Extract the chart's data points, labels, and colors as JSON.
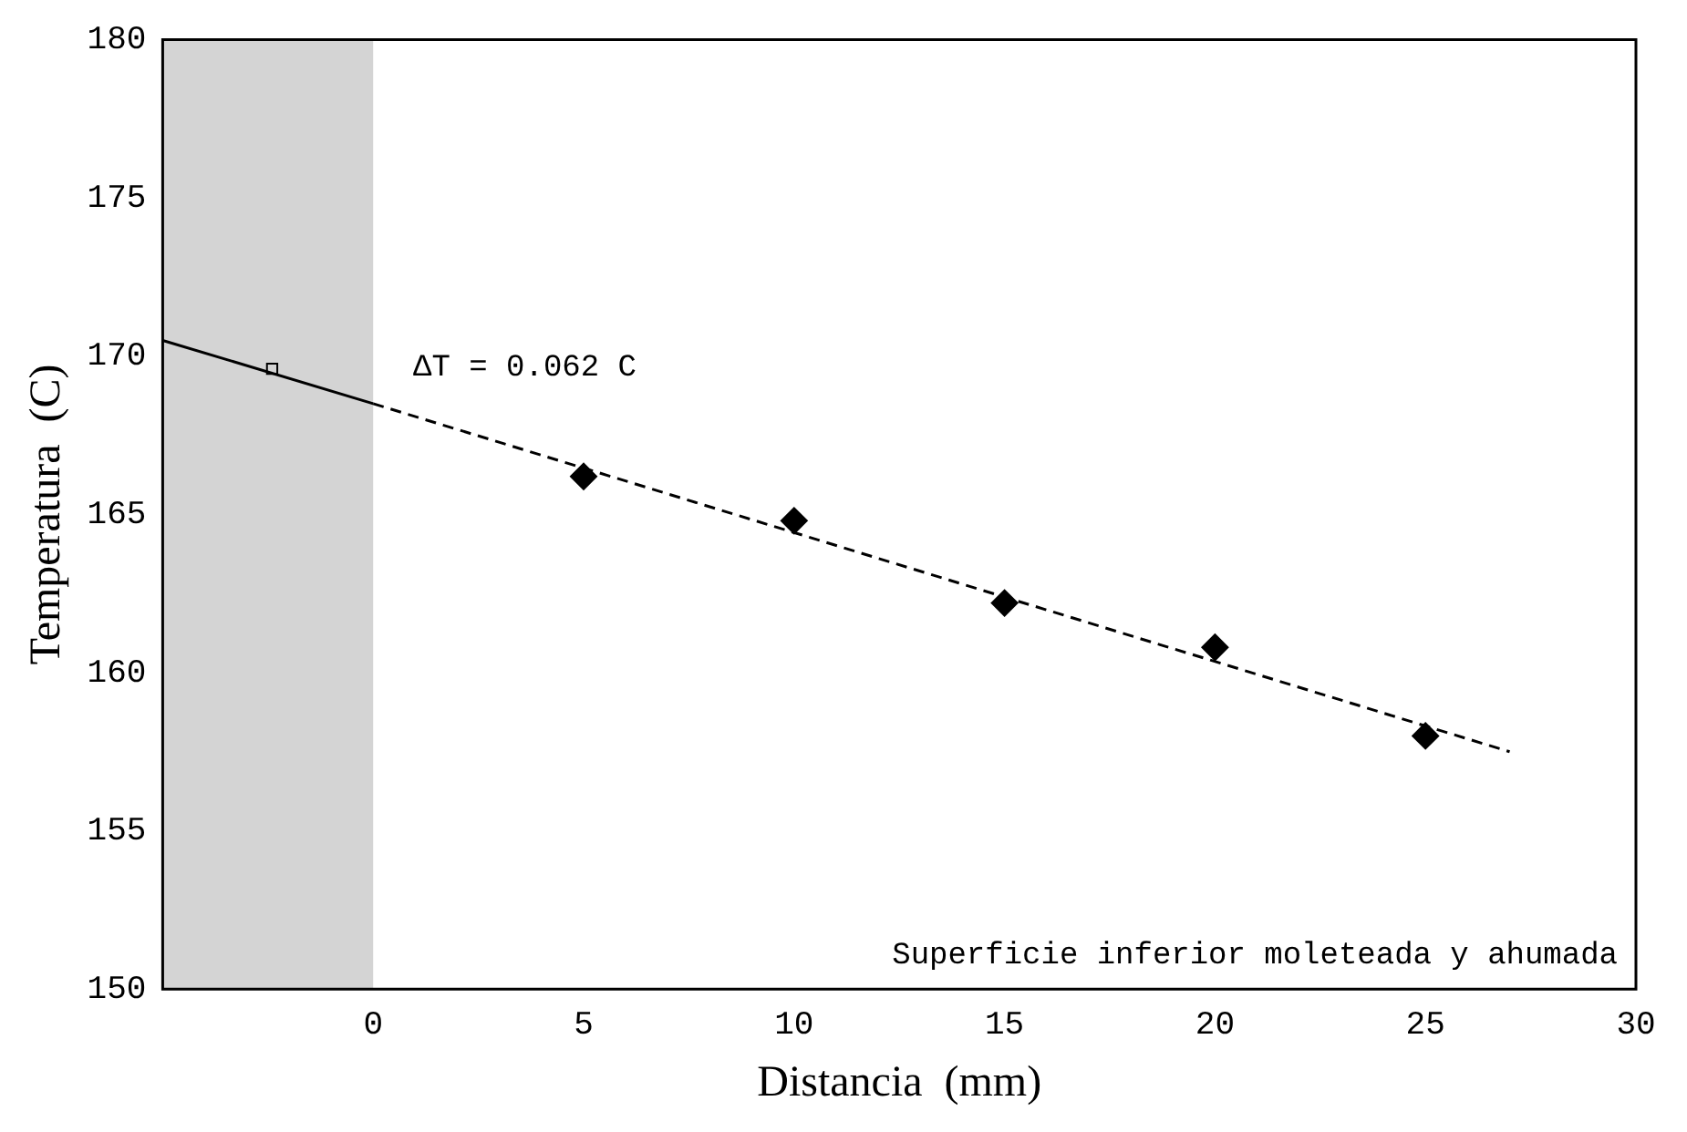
{
  "chart_data": {
    "type": "scatter",
    "xlabel": "Distancia  (mm)",
    "ylabel": "Temperatura  (C)",
    "xlim": [
      -5,
      30
    ],
    "xticks": [
      0,
      5,
      10,
      15,
      20,
      25,
      30
    ],
    "ylim": [
      150,
      180
    ],
    "yticks": [
      150,
      155,
      160,
      165,
      170,
      175,
      180
    ],
    "grid": false,
    "legend": false,
    "bands": [
      {
        "axis": "x",
        "from": -5,
        "to": 0,
        "color": "#d4d4d4"
      }
    ],
    "annotations": [
      "ΔT = 0.062 C",
      "Superficie inferior moleteada y ahumada"
    ],
    "series": [
      {
        "type": "scatter",
        "marker": "diamond",
        "color": "#000000",
        "x": [
          5,
          10,
          15,
          20,
          25
        ],
        "values": [
          166.2,
          164.8,
          162.2,
          160.8,
          158.0
        ]
      },
      {
        "type": "scatter",
        "marker": "square",
        "color": "#000000",
        "x": [
          -2.4
        ],
        "values": [
          169.6
        ]
      },
      {
        "type": "line",
        "marker": "none",
        "line_style": "solid",
        "color": "#000000",
        "x": [
          -5,
          0
        ],
        "values": [
          170.5,
          168.5
        ]
      },
      {
        "type": "line",
        "marker": "none",
        "line_style": "dashed",
        "color": "#000000",
        "x": [
          0,
          27
        ],
        "values": [
          168.5,
          157.5
        ]
      }
    ]
  }
}
